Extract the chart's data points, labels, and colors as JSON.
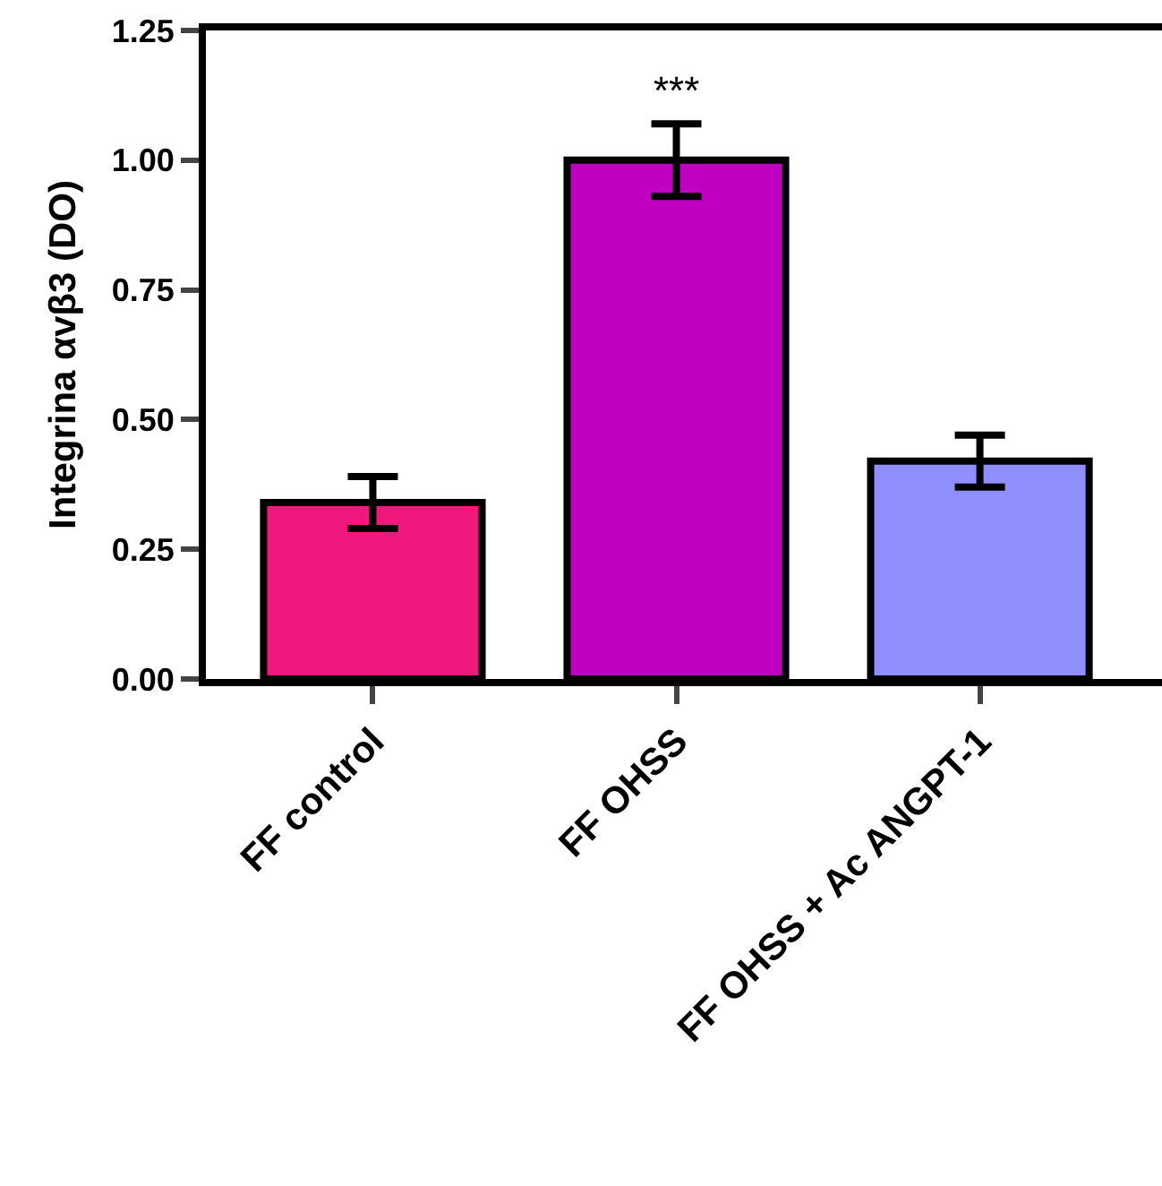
{
  "chart_data": {
    "type": "bar",
    "ylabel": "Integrina αvβ3 (DO)",
    "categories": [
      "FF control",
      "FF OHSS",
      "FF OHSS + Ac ANGPT-1"
    ],
    "values": [
      0.34,
      1.0,
      0.42
    ],
    "colors": [
      "#f0187c",
      "#c000c0",
      "#8f8fff"
    ],
    "errors": [
      0.05,
      0.07,
      0.05
    ],
    "annotations": [
      "***"
    ],
    "ylim": [
      0,
      1.25
    ],
    "yticks": [
      {
        "value": 0,
        "label": "0.00"
      },
      {
        "value": 0.25,
        "label": "0.25"
      },
      {
        "value": 0.5,
        "label": "0.50"
      },
      {
        "value": 0.75,
        "label": "0.75"
      },
      {
        "value": 1.0,
        "label": "1.00"
      },
      {
        "value": 1.25,
        "label": "1.25"
      }
    ]
  }
}
